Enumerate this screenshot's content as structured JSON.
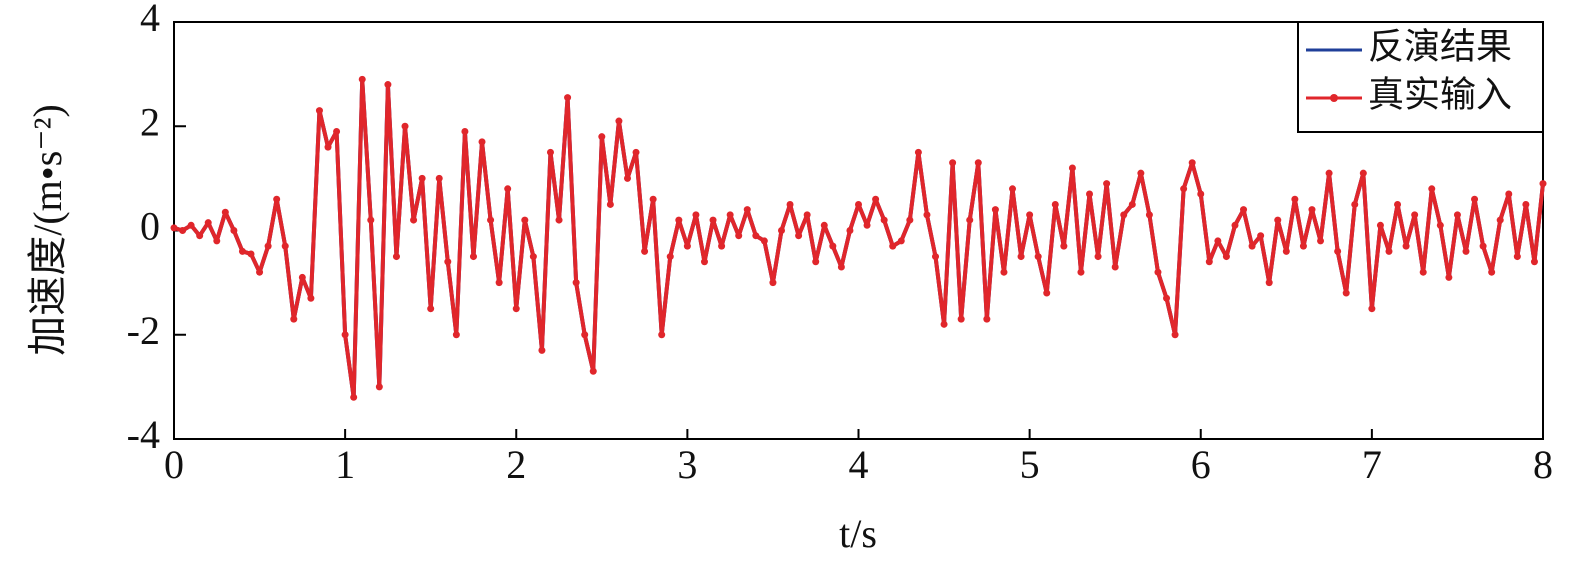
{
  "chart_data": {
    "type": "line",
    "xlabel": "t/s",
    "ylabel": "加速度/(m•s⁻²)",
    "x": [
      0,
      0.05,
      0.1,
      0.15,
      0.2,
      0.25,
      0.3,
      0.35,
      0.4,
      0.45,
      0.5,
      0.55,
      0.6,
      0.65,
      0.7,
      0.75,
      0.8,
      0.85,
      0.9,
      0.95,
      1,
      1.05,
      1.1,
      1.15,
      1.2,
      1.25,
      1.3,
      1.35,
      1.4,
      1.45,
      1.5,
      1.55,
      1.6,
      1.65,
      1.7,
      1.75,
      1.8,
      1.85,
      1.9,
      1.95,
      2,
      2.05,
      2.1,
      2.15,
      2.2,
      2.25,
      2.3,
      2.35,
      2.4,
      2.45,
      2.5,
      2.55,
      2.6,
      2.65,
      2.7,
      2.75,
      2.8,
      2.85,
      2.9,
      2.95,
      3,
      3.05,
      3.1,
      3.15,
      3.2,
      3.25,
      3.3,
      3.35,
      3.4,
      3.45,
      3.5,
      3.55,
      3.6,
      3.65,
      3.7,
      3.75,
      3.8,
      3.85,
      3.9,
      3.95,
      4,
      4.05,
      4.1,
      4.15,
      4.2,
      4.25,
      4.3,
      4.35,
      4.4,
      4.45,
      4.5,
      4.55,
      4.6,
      4.65,
      4.7,
      4.75,
      4.8,
      4.85,
      4.9,
      4.95,
      5,
      5.05,
      5.1,
      5.15,
      5.2,
      5.25,
      5.3,
      5.35,
      5.4,
      5.45,
      5.5,
      5.55,
      5.6,
      5.65,
      5.7,
      5.75,
      5.8,
      5.85,
      5.9,
      5.95,
      6,
      6.05,
      6.1,
      6.15,
      6.2,
      6.25,
      6.3,
      6.35,
      6.4,
      6.45,
      6.5,
      6.55,
      6.6,
      6.65,
      6.7,
      6.75,
      6.8,
      6.85,
      6.9,
      6.95,
      7,
      7.05,
      7.1,
      7.15,
      7.2,
      7.25,
      7.3,
      7.35,
      7.4,
      7.45,
      7.5,
      7.55,
      7.6,
      7.65,
      7.7,
      7.75,
      7.8,
      7.85,
      7.9,
      7.95,
      8
    ],
    "series": [
      {
        "name": "反演结果",
        "color": "#1f3f99",
        "markers": false,
        "values": [
          0.05,
          0,
          0.1,
          -0.1,
          0.15,
          -0.2,
          0.35,
          0,
          -0.4,
          -0.45,
          -0.8,
          -0.3,
          0.6,
          -0.3,
          -1.7,
          -0.9,
          -1.3,
          2.3,
          1.6,
          1.9,
          -2,
          -3.2,
          2.9,
          0.2,
          -3,
          2.8,
          -0.5,
          2,
          0.2,
          1,
          -1.5,
          1,
          -0.6,
          -2,
          1.9,
          -0.5,
          1.7,
          0.2,
          -1,
          0.8,
          -1.5,
          0.2,
          -0.5,
          -2.3,
          1.5,
          0.2,
          2.55,
          -1,
          -2,
          -2.7,
          1.8,
          0.5,
          2.1,
          1,
          1.5,
          -0.4,
          0.6,
          -2,
          -0.5,
          0.2,
          -0.3,
          0.3,
          -0.6,
          0.2,
          -0.3,
          0.3,
          -0.1,
          0.4,
          -0.1,
          -0.2,
          -1,
          0,
          0.5,
          -0.1,
          0.3,
          -0.6,
          0.1,
          -0.3,
          -0.7,
          0,
          0.5,
          0.1,
          0.6,
          0.2,
          -0.3,
          -0.2,
          0.2,
          1.5,
          0.3,
          -0.5,
          -1.8,
          1.3,
          -1.7,
          0.2,
          1.3,
          -1.7,
          0.4,
          -0.8,
          0.8,
          -0.5,
          0.3,
          -0.5,
          -1.2,
          0.5,
          -0.3,
          1.2,
          -0.8,
          0.7,
          -0.5,
          0.9,
          -0.7,
          0.3,
          0.5,
          1.1,
          0.3,
          -0.8,
          -1.3,
          -2,
          0.8,
          1.3,
          0.7,
          -0.6,
          -0.2,
          -0.5,
          0.1,
          0.4,
          -0.3,
          -0.1,
          -1,
          0.2,
          -0.4,
          0.6,
          -0.3,
          0.4,
          -0.2,
          1.1,
          -0.4,
          -1.2,
          0.5,
          1.1,
          -1.5,
          0.1,
          -0.4,
          0.5,
          -0.3,
          0.3,
          -0.8,
          0.8,
          0.1,
          -0.9,
          0.3,
          -0.4,
          0.6,
          -0.3,
          -0.8,
          0.2,
          0.7,
          -0.5,
          0.5,
          -0.6,
          0.9
        ]
      },
      {
        "name": "真实输入",
        "color": "#e0262b",
        "markers": true,
        "values": [
          0.05,
          0,
          0.1,
          -0.1,
          0.15,
          -0.2,
          0.35,
          0,
          -0.4,
          -0.45,
          -0.8,
          -0.3,
          0.6,
          -0.3,
          -1.7,
          -0.9,
          -1.3,
          2.3,
          1.6,
          1.9,
          -2,
          -3.2,
          2.9,
          0.2,
          -3,
          2.8,
          -0.5,
          2,
          0.2,
          1,
          -1.5,
          1,
          -0.6,
          -2,
          1.9,
          -0.5,
          1.7,
          0.2,
          -1,
          0.8,
          -1.5,
          0.2,
          -0.5,
          -2.3,
          1.5,
          0.2,
          2.55,
          -1,
          -2,
          -2.7,
          1.8,
          0.5,
          2.1,
          1,
          1.5,
          -0.4,
          0.6,
          -2,
          -0.5,
          0.2,
          -0.3,
          0.3,
          -0.6,
          0.2,
          -0.3,
          0.3,
          -0.1,
          0.4,
          -0.1,
          -0.2,
          -1,
          0,
          0.5,
          -0.1,
          0.3,
          -0.6,
          0.1,
          -0.3,
          -0.7,
          0,
          0.5,
          0.1,
          0.6,
          0.2,
          -0.3,
          -0.2,
          0.2,
          1.5,
          0.3,
          -0.5,
          -1.8,
          1.3,
          -1.7,
          0.2,
          1.3,
          -1.7,
          0.4,
          -0.8,
          0.8,
          -0.5,
          0.3,
          -0.5,
          -1.2,
          0.5,
          -0.3,
          1.2,
          -0.8,
          0.7,
          -0.5,
          0.9,
          -0.7,
          0.3,
          0.5,
          1.1,
          0.3,
          -0.8,
          -1.3,
          -2,
          0.8,
          1.3,
          0.7,
          -0.6,
          -0.2,
          -0.5,
          0.1,
          0.4,
          -0.3,
          -0.1,
          -1,
          0.2,
          -0.4,
          0.6,
          -0.3,
          0.4,
          -0.2,
          1.1,
          -0.4,
          -1.2,
          0.5,
          1.1,
          -1.5,
          0.1,
          -0.4,
          0.5,
          -0.3,
          0.3,
          -0.8,
          0.8,
          0.1,
          -0.9,
          0.3,
          -0.4,
          0.6,
          -0.3,
          -0.8,
          0.2,
          0.7,
          -0.5,
          0.5,
          -0.6,
          0.9
        ]
      }
    ],
    "xlim": [
      0,
      8
    ],
    "xticks": [
      0,
      1,
      2,
      3,
      4,
      5,
      6,
      7,
      8
    ],
    "ylim": [
      -4,
      4
    ],
    "yticks": [
      -4,
      -2,
      0,
      2,
      4
    ],
    "grid": false,
    "legend": "upper right"
  }
}
